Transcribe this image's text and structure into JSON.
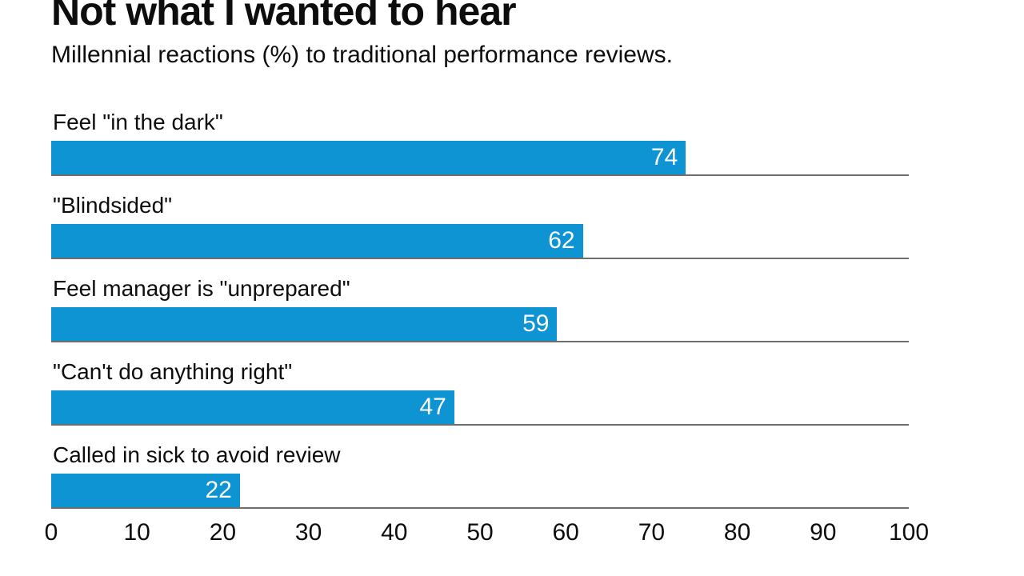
{
  "chart_data": {
    "type": "bar",
    "orientation": "horizontal",
    "title": "Not what I wanted to hear",
    "subtitle": "Millennial reactions (%) to traditional performance reviews.",
    "categories": [
      "Feel \"in the dark\"",
      "\"Blindsided\"",
      "Feel manager is \"unprepared\"",
      "\"Can't do anything right\"",
      "Called in sick to avoid review"
    ],
    "values": [
      74,
      62,
      59,
      47,
      22
    ],
    "value_labels": [
      "74",
      "62",
      "59",
      "47",
      "22"
    ],
    "xticks": [
      "0",
      "10",
      "20",
      "30",
      "40",
      "50",
      "60",
      "70",
      "80",
      "90",
      "100"
    ],
    "xlim": [
      0,
      100
    ],
    "grid": "row-separator-lines-only",
    "legend": "none",
    "colors": {
      "bar": "#0e94d2",
      "value_text": "#ffffff",
      "separator_line": "#6e6e6e",
      "text": "#0d0d0d",
      "background": "#ffffff"
    }
  }
}
